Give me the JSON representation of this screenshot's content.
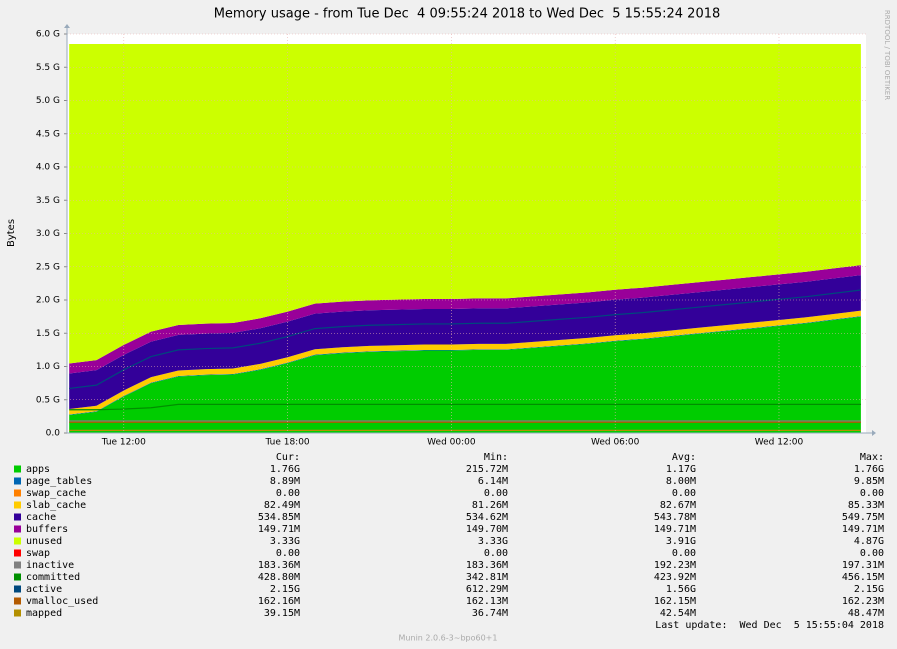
{
  "chart_data": {
    "type": "stacked_area",
    "title": "Memory usage - from Tue Dec  4 09:55:24 2018 to Wed Dec  5 15:55:24 2018",
    "y_label": "Bytes",
    "side_label": "RRDTOOL / TOBI OETIKER",
    "categories": [
      null,
      null,
      "Tue 12:00",
      null,
      null,
      null,
      null,
      null,
      "Tue 18:00",
      null,
      null,
      null,
      null,
      null,
      "Wed 00:00",
      null,
      null,
      null,
      null,
      null,
      "Wed 06:00",
      null,
      null,
      null,
      null,
      null,
      "Wed 12:00",
      null,
      null,
      null
    ],
    "ylim": [
      0,
      6.0
    ],
    "yticks": [
      {
        "value": 0,
        "label": "0.0"
      },
      {
        "value": 0.5,
        "label": "0.5 G"
      },
      {
        "value": 1,
        "label": "1.0 G"
      },
      {
        "value": 1.5,
        "label": "1.5 G"
      },
      {
        "value": 2,
        "label": "2.0 G"
      },
      {
        "value": 2.5,
        "label": "2.5 G"
      },
      {
        "value": 3,
        "label": "3.0 G"
      },
      {
        "value": 3.5,
        "label": "3.5 G"
      },
      {
        "value": 4,
        "label": "4.0 G"
      },
      {
        "value": 4.5,
        "label": "4.5 G"
      },
      {
        "value": 5,
        "label": "5.0 G"
      },
      {
        "value": 5.5,
        "label": "5.5 G"
      },
      {
        "value": 6,
        "label": "6.0 G"
      }
    ],
    "grid": true,
    "stats_header": [
      "Cur:",
      "Min:",
      "Avg:",
      "Max:"
    ],
    "series": [
      {
        "name": "apps",
        "kind": "area",
        "color": "#00cc00",
        "stats": [
          "1.76G",
          "215.72M",
          "1.17G",
          "1.76G"
        ],
        "values": [
          0.27,
          0.32,
          0.55,
          0.75,
          0.85,
          0.87,
          0.88,
          0.95,
          1.05,
          1.17,
          1.2,
          1.22,
          1.23,
          1.24,
          1.24,
          1.25,
          1.25,
          1.28,
          1.31,
          1.34,
          1.38,
          1.41,
          1.45,
          1.49,
          1.53,
          1.57,
          1.61,
          1.65,
          1.7,
          1.75
        ]
      },
      {
        "name": "page_tables",
        "kind": "area",
        "color": "#0066b3",
        "stats": [
          "8.89M",
          "6.14M",
          "8.00M",
          "9.85M"
        ],
        "values": [
          0.008,
          0.008,
          0.008,
          0.008,
          0.008,
          0.008,
          0.008,
          0.008,
          0.008,
          0.008,
          0.008,
          0.008,
          0.008,
          0.008,
          0.008,
          0.008,
          0.008,
          0.008,
          0.008,
          0.008,
          0.008,
          0.008,
          0.008,
          0.008,
          0.008,
          0.008,
          0.008,
          0.008,
          0.008,
          0.008
        ]
      },
      {
        "name": "swap_cache",
        "kind": "area",
        "color": "#ff8000",
        "stats": [
          "0.00",
          "0.00",
          "0.00",
          "0.00"
        ],
        "values": [
          0,
          0,
          0,
          0,
          0,
          0,
          0,
          0,
          0,
          0,
          0,
          0,
          0,
          0,
          0,
          0,
          0,
          0,
          0,
          0,
          0,
          0,
          0,
          0,
          0,
          0,
          0,
          0,
          0,
          0
        ]
      },
      {
        "name": "slab_cache",
        "kind": "area",
        "color": "#ffcc00",
        "stats": [
          "82.49M",
          "81.26M",
          "82.67M",
          "85.33M"
        ],
        "values": [
          0.082,
          0.082,
          0.082,
          0.082,
          0.082,
          0.082,
          0.082,
          0.082,
          0.082,
          0.082,
          0.082,
          0.082,
          0.082,
          0.082,
          0.082,
          0.082,
          0.082,
          0.082,
          0.082,
          0.082,
          0.082,
          0.082,
          0.082,
          0.082,
          0.082,
          0.082,
          0.082,
          0.082,
          0.082,
          0.082
        ]
      },
      {
        "name": "cache",
        "kind": "area",
        "color": "#330099",
        "stats": [
          "534.85M",
          "534.62M",
          "543.78M",
          "549.75M"
        ],
        "values": [
          0.535,
          0.535,
          0.535,
          0.535,
          0.535,
          0.535,
          0.535,
          0.535,
          0.535,
          0.535,
          0.535,
          0.535,
          0.535,
          0.535,
          0.535,
          0.535,
          0.535,
          0.535,
          0.535,
          0.535,
          0.535,
          0.535,
          0.535,
          0.535,
          0.535,
          0.535,
          0.535,
          0.535,
          0.535,
          0.535
        ]
      },
      {
        "name": "buffers",
        "kind": "area",
        "color": "#990099",
        "stats": [
          "149.71M",
          "149.70M",
          "149.71M",
          "149.71M"
        ],
        "values": [
          0.15,
          0.15,
          0.15,
          0.15,
          0.15,
          0.15,
          0.15,
          0.15,
          0.15,
          0.15,
          0.15,
          0.15,
          0.15,
          0.15,
          0.15,
          0.15,
          0.15,
          0.15,
          0.15,
          0.15,
          0.15,
          0.15,
          0.15,
          0.15,
          0.15,
          0.15,
          0.15,
          0.15,
          0.15,
          0.15
        ]
      },
      {
        "name": "unused",
        "kind": "area",
        "color": "#ccff00",
        "stats": [
          "3.33G",
          "3.33G",
          "3.91G",
          "4.87G"
        ],
        "values": [
          4.804,
          4.754,
          4.524,
          4.324,
          4.224,
          4.204,
          4.194,
          4.124,
          4.024,
          3.904,
          3.874,
          3.854,
          3.844,
          3.834,
          3.834,
          3.824,
          3.824,
          3.794,
          3.764,
          3.734,
          3.694,
          3.664,
          3.624,
          3.584,
          3.544,
          3.504,
          3.464,
          3.424,
          3.374,
          3.324
        ]
      },
      {
        "name": "swap",
        "kind": "area",
        "color": "#ff0000",
        "stats": [
          "0.00",
          "0.00",
          "0.00",
          "0.00"
        ],
        "values": [
          0,
          0,
          0,
          0,
          0,
          0,
          0,
          0,
          0,
          0,
          0,
          0,
          0,
          0,
          0,
          0,
          0,
          0,
          0,
          0,
          0,
          0,
          0,
          0,
          0,
          0,
          0,
          0,
          0,
          0
        ]
      },
      {
        "name": "inactive",
        "kind": "line",
        "color": "#808080",
        "stats": [
          "183.36M",
          "183.36M",
          "192.23M",
          "197.31M"
        ],
        "values": [
          0.18,
          0.18,
          0.18,
          0.18,
          0.18,
          0.18,
          0.18,
          0.18,
          0.18,
          0.18,
          0.18,
          0.18,
          0.18,
          0.18,
          0.18,
          0.18,
          0.18,
          0.18,
          0.18,
          0.18,
          0.18,
          0.18,
          0.18,
          0.18,
          0.18,
          0.18,
          0.18,
          0.18,
          0.18,
          0.18
        ]
      },
      {
        "name": "committed",
        "kind": "line",
        "color": "#008f00",
        "stats": [
          "428.80M",
          "342.81M",
          "423.92M",
          "456.15M"
        ],
        "values": [
          0.35,
          0.35,
          0.36,
          0.38,
          0.43,
          0.43,
          0.43,
          0.43,
          0.43,
          0.43,
          0.43,
          0.43,
          0.43,
          0.43,
          0.43,
          0.43,
          0.43,
          0.43,
          0.43,
          0.43,
          0.43,
          0.43,
          0.43,
          0.43,
          0.43,
          0.43,
          0.43,
          0.43,
          0.43,
          0.43
        ]
      },
      {
        "name": "active",
        "kind": "line",
        "color": "#00487d",
        "stats": [
          "2.15G",
          "612.29M",
          "1.56G",
          "2.15G"
        ],
        "values": [
          0.67,
          0.72,
          0.95,
          1.15,
          1.25,
          1.27,
          1.28,
          1.35,
          1.45,
          1.57,
          1.6,
          1.62,
          1.63,
          1.64,
          1.64,
          1.65,
          1.65,
          1.68,
          1.71,
          1.74,
          1.78,
          1.81,
          1.85,
          1.89,
          1.93,
          1.97,
          2.01,
          2.05,
          2.1,
          2.15
        ]
      },
      {
        "name": "vmalloc_used",
        "kind": "line",
        "color": "#b35a00",
        "stats": [
          "162.16M",
          "162.13M",
          "162.15M",
          "162.23M"
        ],
        "values": [
          0.162,
          0.162,
          0.162,
          0.162,
          0.162,
          0.162,
          0.162,
          0.162,
          0.162,
          0.162,
          0.162,
          0.162,
          0.162,
          0.162,
          0.162,
          0.162,
          0.162,
          0.162,
          0.162,
          0.162,
          0.162,
          0.162,
          0.162,
          0.162,
          0.162,
          0.162,
          0.162,
          0.162,
          0.162,
          0.162
        ]
      },
      {
        "name": "mapped",
        "kind": "line",
        "color": "#b38f00",
        "stats": [
          "39.15M",
          "36.74M",
          "42.54M",
          "48.47M"
        ],
        "values": [
          0.04,
          0.04,
          0.04,
          0.04,
          0.04,
          0.04,
          0.04,
          0.04,
          0.04,
          0.04,
          0.04,
          0.04,
          0.04,
          0.04,
          0.04,
          0.04,
          0.04,
          0.04,
          0.04,
          0.04,
          0.04,
          0.04,
          0.04,
          0.04,
          0.04,
          0.04,
          0.04,
          0.04,
          0.04,
          0.04
        ]
      }
    ],
    "last_update": "Last update:  Wed Dec  5 15:55:04 2018",
    "footer": "Munin 2.0.6-3~bpo60+1"
  }
}
